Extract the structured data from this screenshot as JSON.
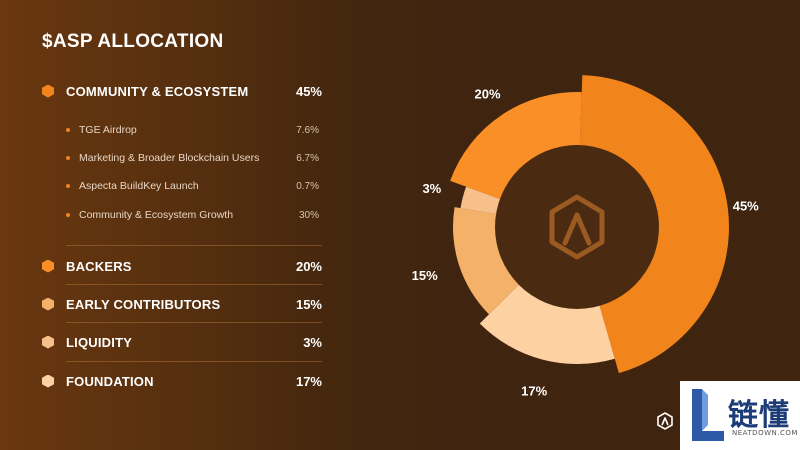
{
  "title": "$ASP ALLOCATION",
  "colors": {
    "community": "#f2841c",
    "backers": "#f98f26",
    "early_contributors": "#f4b16a",
    "liquidity": "#f7c08a",
    "foundation": "#fdd1a1",
    "sub_dot": "#f2841c",
    "center_logo": "#9a5a22"
  },
  "categories": [
    {
      "label": "COMMUNITY & ECOSYSTEM",
      "value": "45%",
      "icon": "hexagon-icon",
      "subitems": [
        {
          "label": "TGE Airdrop",
          "value": "7.6%"
        },
        {
          "label": "Marketing & Broader Blockchain Users",
          "value": "6.7%"
        },
        {
          "label": "Aspecta BuildKey Launch",
          "value": "0.7%"
        },
        {
          "label": "Community & Ecosystem Growth",
          "value": "30%"
        }
      ]
    },
    {
      "label": "BACKERS",
      "value": "20%",
      "icon": "hexagon-icon"
    },
    {
      "label": "EARLY CONTRIBUTORS",
      "value": "15%",
      "icon": "hexagon-icon"
    },
    {
      "label": "LIQUIDITY",
      "value": "3%",
      "icon": "hexagon-icon"
    },
    {
      "label": "FOUNDATION",
      "value": "17%",
      "icon": "hexagon-icon"
    }
  ],
  "chart_data": {
    "type": "pie",
    "variant": "donut",
    "start": "top, clockwise",
    "slices": [
      {
        "name": "COMMUNITY & ECOSYSTEM",
        "value": 45,
        "label": "45%",
        "color": "#f2841c"
      },
      {
        "name": "FOUNDATION",
        "value": 17,
        "label": "17%",
        "color": "#fdd1a1"
      },
      {
        "name": "EARLY CONTRIBUTORS",
        "value": 15,
        "label": "15%",
        "color": "#f4b16a"
      },
      {
        "name": "LIQUIDITY",
        "value": 3,
        "label": "3%",
        "color": "#f7c08a"
      },
      {
        "name": "BACKERS",
        "value": 20,
        "label": "20%",
        "color": "#f98f26"
      }
    ]
  },
  "watermark": {
    "chinese": "链懂",
    "site": "NEATDOWN.COM"
  }
}
